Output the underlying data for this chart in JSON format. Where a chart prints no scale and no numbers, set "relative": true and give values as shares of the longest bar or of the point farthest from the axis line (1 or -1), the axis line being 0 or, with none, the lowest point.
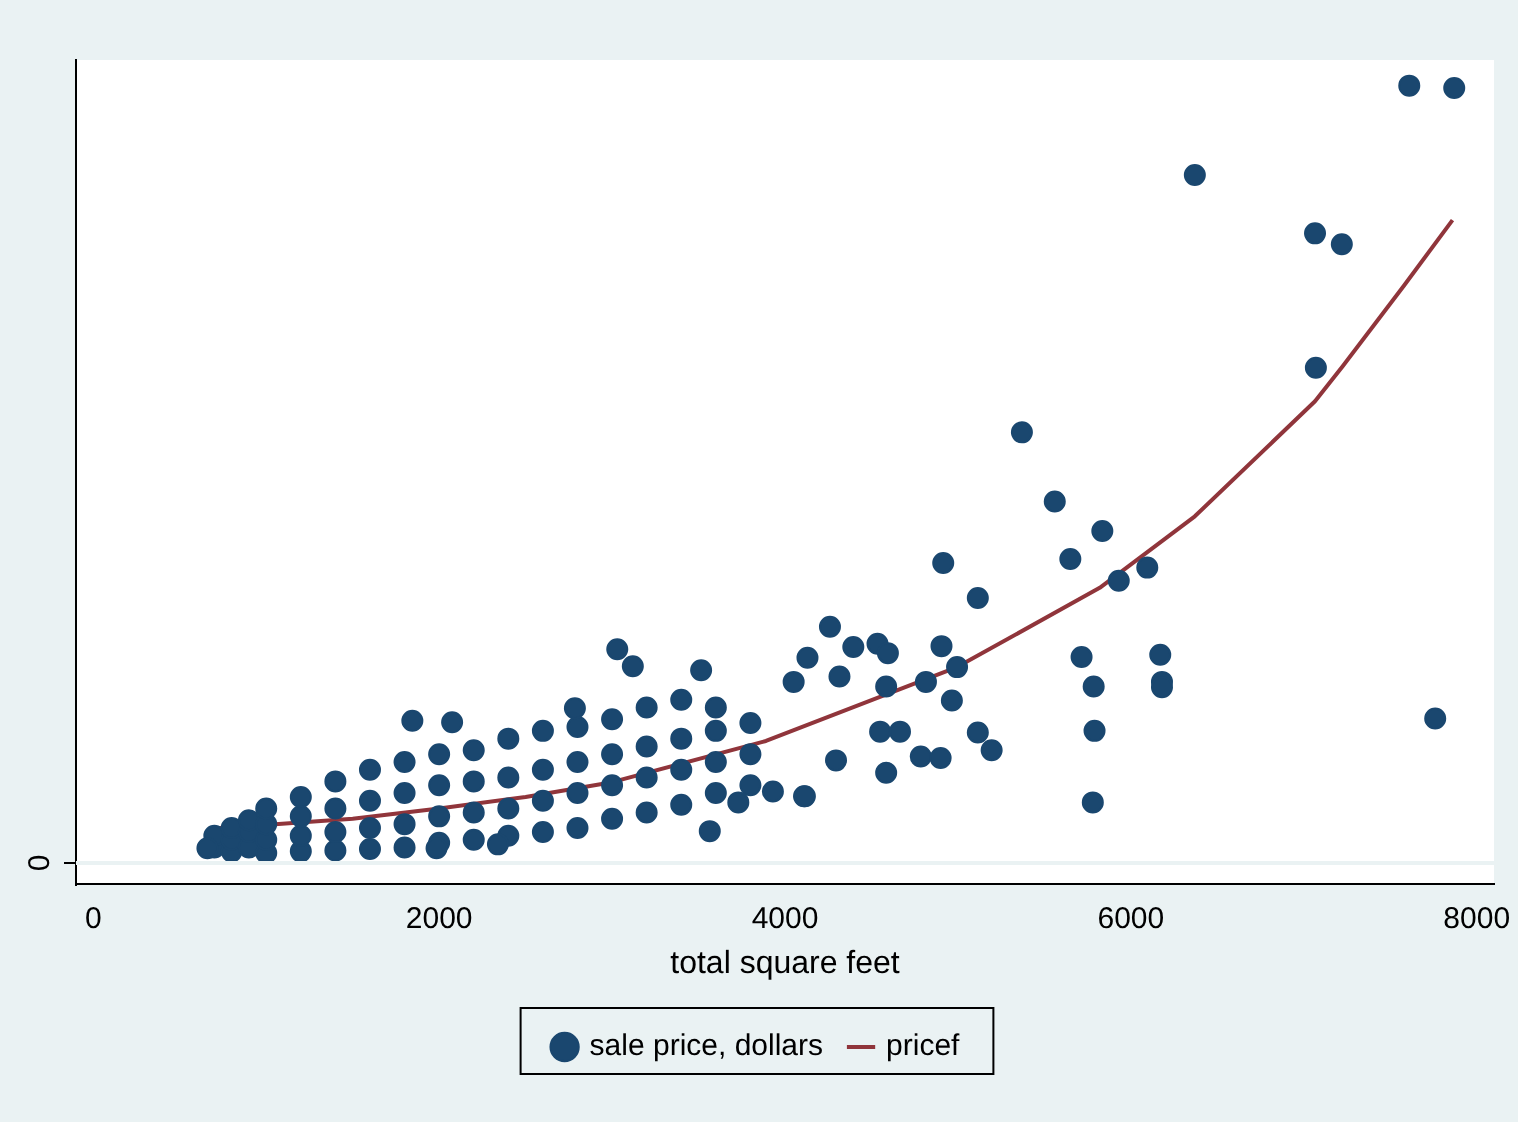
{
  "chart_data": {
    "type": "scatter",
    "xlabel": "total square feet",
    "relative": true,
    "legend": "bottom",
    "xlim": [
      -100,
      8100
    ],
    "xticks": [
      0,
      2000,
      4000,
      6000,
      8000
    ],
    "annotations": [
      "0"
    ],
    "series": [
      {
        "name": "sale price, dollars",
        "marker": "circle",
        "color": "#1a476f",
        "x": [
          700,
          700,
          800,
          800,
          800,
          900,
          900,
          900,
          1000,
          1000,
          1000,
          1000,
          1200,
          1200,
          1200,
          1200,
          1400,
          1400,
          1400,
          1400,
          1600,
          1600,
          1600,
          1600,
          1800,
          1800,
          1800,
          1800,
          2000,
          2000,
          2000,
          2000,
          2200,
          2200,
          2200,
          2200,
          2400,
          2400,
          2400,
          2400,
          2600,
          2600,
          2600,
          2600,
          2800,
          2800,
          2800,
          2800,
          3000,
          3000,
          3000,
          3000,
          3200,
          3200,
          3200,
          3200,
          3400,
          3400,
          3400,
          3400,
          3600,
          3600,
          3600,
          3600,
          3800,
          3800,
          3800,
          660,
          1845,
          2075,
          2785,
          3030,
          3120,
          3515,
          3565,
          1985,
          2340,
          3730,
          4110,
          3930,
          4050,
          4130,
          4260,
          4295,
          4115,
          4315,
          4395,
          4535,
          4550,
          4585,
          4585,
          4595,
          4665,
          4785,
          4815,
          4900,
          4905,
          4965,
          4995,
          5115,
          5115,
          5195,
          4915,
          5370,
          5560,
          5650,
          5715,
          5785,
          5790,
          5780,
          5835,
          5930,
          6095,
          6170,
          6180,
          6180,
          6370,
          7065,
          7070,
          7220,
          7610,
          7760,
          7870
        ],
        "values": [
          0.02,
          0.035,
          0.015,
          0.03,
          0.045,
          0.02,
          0.04,
          0.055,
          0.013,
          0.03,
          0.05,
          0.07,
          0.015,
          0.035,
          0.06,
          0.085,
          0.016,
          0.04,
          0.07,
          0.105,
          0.018,
          0.045,
          0.08,
          0.12,
          0.02,
          0.05,
          0.09,
          0.13,
          0.026,
          0.06,
          0.1,
          0.14,
          0.03,
          0.065,
          0.105,
          0.145,
          0.035,
          0.07,
          0.11,
          0.16,
          0.04,
          0.08,
          0.12,
          0.17,
          0.045,
          0.09,
          0.13,
          0.175,
          0.057,
          0.1,
          0.14,
          0.185,
          0.065,
          0.11,
          0.15,
          0.2,
          0.075,
          0.12,
          0.16,
          0.21,
          0.09,
          0.13,
          0.17,
          0.2,
          0.1,
          0.14,
          0.18,
          0.019,
          0.183,
          0.181,
          0.199,
          0.275,
          0.253,
          0.248,
          0.041,
          0.019,
          0.024,
          0.078,
          0.086,
          0.092,
          0.233,
          0.264,
          0.304,
          0.132,
          0.086,
          0.24,
          0.278,
          0.282,
          0.169,
          0.227,
          0.116,
          0.27,
          0.169,
          0.137,
          0.233,
          0.135,
          0.279,
          0.209,
          0.252,
          0.341,
          0.168,
          0.145,
          0.386,
          0.554,
          0.465,
          0.391,
          0.265,
          0.227,
          0.17,
          0.078,
          0.427,
          0.363,
          0.38,
          0.268,
          0.233,
          0.226,
          0.885,
          0.81,
          0.637,
          0.796,
          1.0,
          0.186,
          0.997
        ]
      },
      {
        "name": "pricef",
        "type": "line",
        "marker": "none",
        "color": "#90353b",
        "x": [
          675,
          1500,
          2000,
          2500,
          3000,
          3890,
          4995,
          5820,
          6370,
          7065,
          7225,
          7580,
          7860
        ],
        "values": [
          0.044,
          0.057,
          0.07,
          0.085,
          0.104,
          0.157,
          0.252,
          0.354,
          0.446,
          0.594,
          0.639,
          0.743,
          0.827
        ]
      }
    ]
  }
}
